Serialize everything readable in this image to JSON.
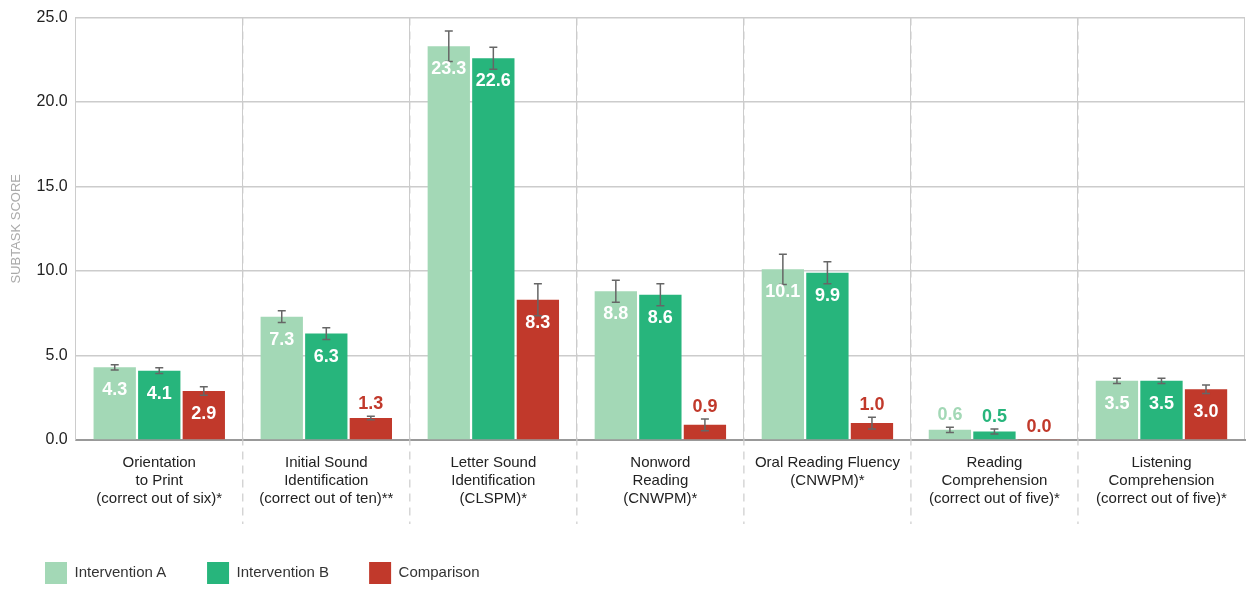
{
  "chart_data": {
    "type": "bar",
    "ylabel": "SUBTASK SCORE",
    "categories": [
      "Orientation\nto Print\n(correct out of six)*",
      "Initial Sound\nIdentification\n(correct out of ten)**",
      "Letter Sound\nIdentification\n(CLSPM)*",
      "Nonword\nReading\n(CNWPM)*",
      "Oral Reading Fluency\n(CNWPM)*",
      "Reading\nComprehension\n(correct out of five)*",
      "Listening\nComprehension\n(correct out of five)*"
    ],
    "series": [
      {
        "name": "Intervention A",
        "color": "#a3d8b6",
        "values": [
          4.3,
          7.3,
          23.3,
          8.8,
          10.1,
          0.6,
          3.5
        ],
        "errors": [
          0.15,
          0.35,
          0.9,
          0.65,
          0.9,
          0.15,
          0.15
        ],
        "value_labels": [
          "4.3",
          "7.3",
          "23.3",
          "8.8",
          "10.1",
          "0.6",
          "3.5"
        ]
      },
      {
        "name": "Intervention B",
        "color": "#27b57c",
        "values": [
          4.1,
          6.3,
          22.6,
          8.6,
          9.9,
          0.5,
          3.5
        ],
        "errors": [
          0.17,
          0.35,
          0.65,
          0.65,
          0.65,
          0.15,
          0.15
        ],
        "value_labels": [
          "4.1",
          "6.3",
          "22.6",
          "8.6",
          "9.9",
          "0.5",
          "3.5"
        ]
      },
      {
        "name": "Comparison",
        "color": "#c1392b",
        "values": [
          2.9,
          1.3,
          8.3,
          0.9,
          1.0,
          0.0,
          3.0
        ],
        "errors": [
          0.25,
          0.1,
          0.95,
          0.35,
          0.35,
          null,
          0.25
        ],
        "value_labels": [
          "2.9",
          "1.3",
          "8.3",
          "0.9",
          "1.0",
          "0.0",
          "3.0"
        ]
      }
    ],
    "ylim": [
      0,
      25
    ],
    "yticks": [
      {
        "value": 0,
        "label": "0.0"
      },
      {
        "value": 5,
        "label": "5.0"
      },
      {
        "value": 10,
        "label": "10.0"
      },
      {
        "value": 15,
        "label": "15.0"
      },
      {
        "value": 20,
        "label": "20.0"
      },
      {
        "value": 25,
        "label": "25.0"
      }
    ],
    "grid": true,
    "legend": "bottom left"
  }
}
